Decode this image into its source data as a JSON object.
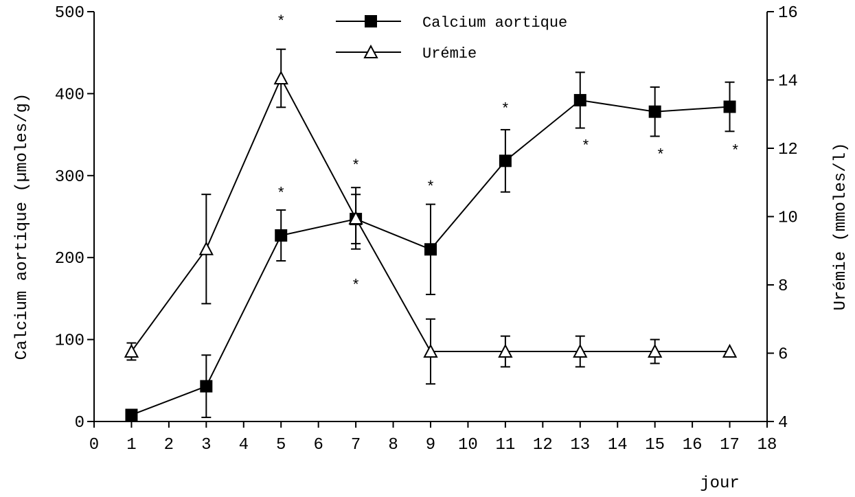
{
  "chart_data": {
    "type": "line",
    "xlabel": "jour",
    "ylabel_left": "Calcium aortique (µmoles/g)",
    "ylabel_right": "Urémie (mmoles/l)",
    "xlim": [
      0,
      18
    ],
    "ylim_left": [
      0,
      500
    ],
    "ylim_right": [
      4,
      16
    ],
    "x_ticks": [
      "0",
      "1",
      "2",
      "3",
      "4",
      "5",
      "6",
      "7",
      "8",
      "9",
      "10",
      "11",
      "12",
      "13",
      "14",
      "15",
      "16",
      "17",
      "18"
    ],
    "y_left_ticks": [
      "0",
      "100",
      "200",
      "300",
      "400",
      "500"
    ],
    "y_right_ticks": [
      "4",
      "6",
      "8",
      "10",
      "12",
      "14",
      "16"
    ],
    "grid": false,
    "legend_position": "top-center",
    "series": [
      {
        "name": "Calcium aortique",
        "axis": "left",
        "marker": "filled-square",
        "x": [
          1,
          3,
          5,
          7,
          9,
          11,
          13,
          15,
          17
        ],
        "values": [
          8,
          43,
          227,
          247,
          210,
          318,
          392,
          378,
          384
        ],
        "error": [
          0,
          38,
          31,
          30,
          55,
          38,
          34,
          30,
          30
        ]
      },
      {
        "name": "Urémie",
        "axis": "right",
        "marker": "open-triangle",
        "x": [
          1,
          3,
          5,
          7,
          9,
          11,
          13,
          15,
          17
        ],
        "values": [
          6.05,
          9.05,
          14.05,
          9.95,
          6.05,
          6.05,
          6.05,
          6.05,
          6.05
        ],
        "error": [
          0.25,
          1.6,
          0.85,
          0.9,
          0.95,
          0.45,
          0.45,
          0.35,
          0
        ]
      }
    ],
    "annotations": [
      {
        "text": "*",
        "x": 5,
        "y": 493,
        "axis": "left"
      },
      {
        "text": "*",
        "x": 5,
        "y": 283,
        "axis": "left"
      },
      {
        "text": "*",
        "x": 7,
        "y": 317,
        "axis": "left"
      },
      {
        "text": "*",
        "x": 7,
        "y": 171,
        "axis": "left"
      },
      {
        "text": "*",
        "x": 9,
        "y": 291,
        "axis": "left"
      },
      {
        "text": "*",
        "x": 11,
        "y": 386,
        "axis": "left"
      },
      {
        "text": "*",
        "x": 13.15,
        "y": 341,
        "axis": "left"
      },
      {
        "text": "*",
        "x": 15.15,
        "y": 330,
        "axis": "left"
      },
      {
        "text": "*",
        "x": 17.15,
        "y": 335,
        "axis": "left"
      }
    ]
  }
}
